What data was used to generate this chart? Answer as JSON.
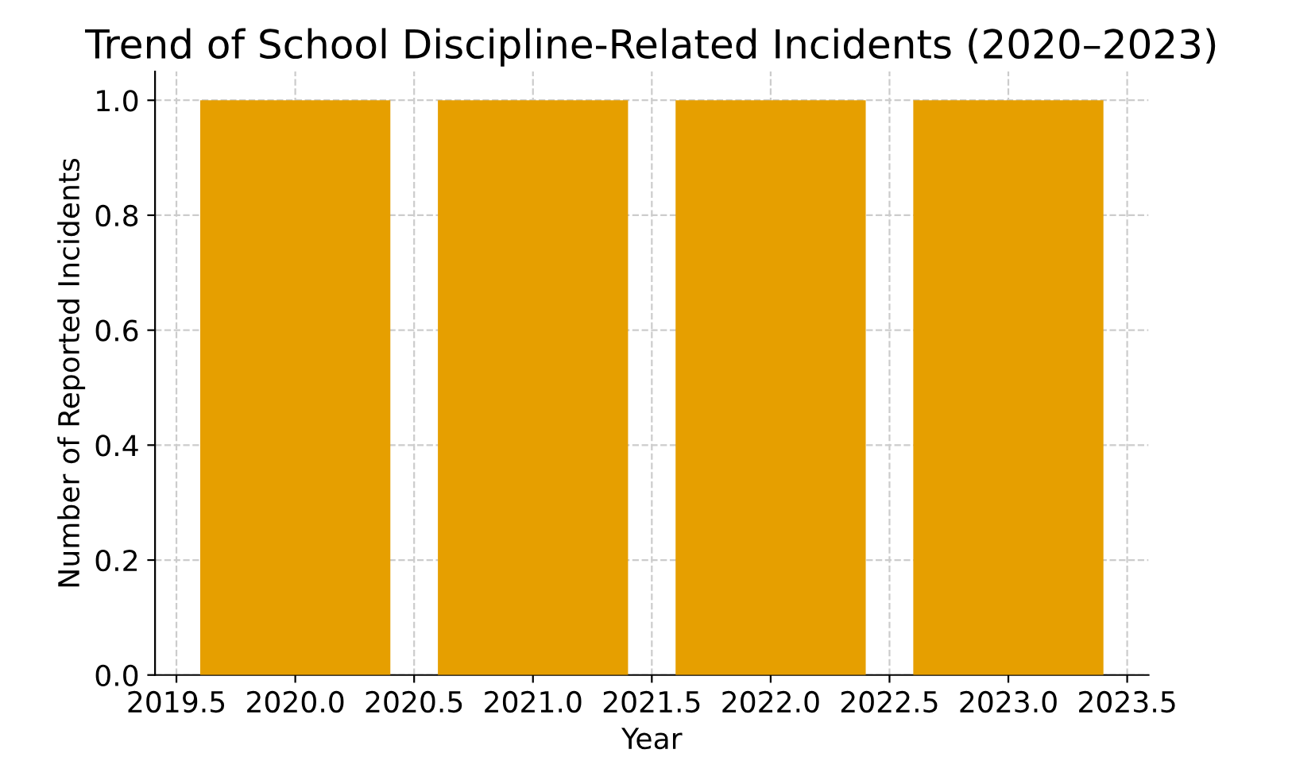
{
  "chart_data": {
    "type": "bar",
    "title": "Trend of School Discipline-Related Incidents (2020–2023)",
    "xlabel": "Year",
    "ylabel": "Number of Reported Incidents",
    "x": [
      2020,
      2021,
      2022,
      2023
    ],
    "values": [
      1,
      1,
      1,
      1
    ],
    "color": "#e69f00",
    "xlim": [
      2019.41,
      2023.59
    ],
    "xticks": [
      2019.5,
      {
        "value": 2020,
        "label": "2020.0"
      },
      2020.5,
      {
        "value": 2021,
        "label": "2021.0"
      },
      2021.5,
      {
        "value": 2022,
        "label": "2022.0"
      },
      2022.5,
      {
        "value": 2023,
        "label": "2023.0"
      },
      2023.5
    ],
    "ylim": [
      0,
      1.05
    ],
    "yticks": [
      {
        "value": 0,
        "label": "0.0"
      },
      0.2,
      0.4,
      0.6,
      0.8,
      {
        "value": 1,
        "label": "1.0"
      }
    ],
    "grid": true
  }
}
